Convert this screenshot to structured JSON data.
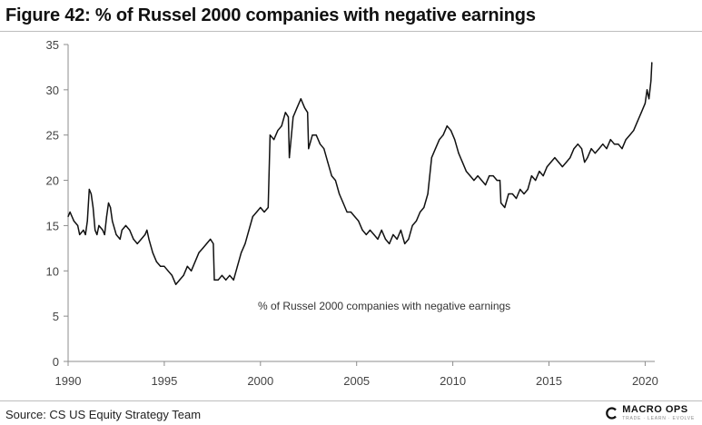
{
  "figure": {
    "title": "Figure 42: % of Russel 2000 companies with negative earnings",
    "source": "Source: CS US Equity Strategy Team"
  },
  "logo": {
    "name": "MACRO OPS",
    "tagline": "TRADE · LEARN · EVOLVE"
  },
  "colors": {
    "line": "#111111",
    "axis": "#8c8c8c",
    "text": "#222222"
  },
  "chart_data": {
    "type": "line",
    "title": "Figure 42: % of Russel 2000 companies with negative earnings",
    "xlabel": "",
    "ylabel": "",
    "xlim": [
      1990,
      2020.5
    ],
    "ylim": [
      0,
      35
    ],
    "grid": false,
    "x_ticks": [
      1990,
      1995,
      2000,
      2005,
      2010,
      2015,
      2020
    ],
    "y_ticks": [
      0,
      5,
      10,
      15,
      20,
      25,
      30,
      35
    ],
    "annotation": "% of Russel 2000 companies with negative earnings",
    "series": [
      {
        "name": "% of Russel 2000 companies with negative earnings",
        "points": [
          [
            1990.0,
            16.0
          ],
          [
            1990.1,
            16.5
          ],
          [
            1990.3,
            15.5
          ],
          [
            1990.5,
            15.0
          ],
          [
            1990.6,
            14.0
          ],
          [
            1990.8,
            14.5
          ],
          [
            1990.9,
            14.0
          ],
          [
            1991.0,
            15.5
          ],
          [
            1991.1,
            19.0
          ],
          [
            1991.2,
            18.5
          ],
          [
            1991.3,
            17.0
          ],
          [
            1991.4,
            14.5
          ],
          [
            1991.5,
            14.0
          ],
          [
            1991.6,
            15.0
          ],
          [
            1991.8,
            14.5
          ],
          [
            1991.9,
            14.0
          ],
          [
            1992.0,
            16.0
          ],
          [
            1992.1,
            17.5
          ],
          [
            1992.2,
            17.0
          ],
          [
            1992.3,
            15.5
          ],
          [
            1992.5,
            14.0
          ],
          [
            1992.7,
            13.5
          ],
          [
            1992.8,
            14.5
          ],
          [
            1993.0,
            15.0
          ],
          [
            1993.2,
            14.5
          ],
          [
            1993.4,
            13.5
          ],
          [
            1993.6,
            13.0
          ],
          [
            1993.8,
            13.5
          ],
          [
            1994.0,
            14.0
          ],
          [
            1994.1,
            14.5
          ],
          [
            1994.2,
            13.5
          ],
          [
            1994.4,
            12.0
          ],
          [
            1994.6,
            11.0
          ],
          [
            1994.8,
            10.5
          ],
          [
            1995.0,
            10.5
          ],
          [
            1995.2,
            10.0
          ],
          [
            1995.4,
            9.5
          ],
          [
            1995.6,
            8.5
          ],
          [
            1995.8,
            9.0
          ],
          [
            1996.0,
            9.5
          ],
          [
            1996.2,
            10.5
          ],
          [
            1996.4,
            10.0
          ],
          [
            1996.6,
            11.0
          ],
          [
            1996.8,
            12.0
          ],
          [
            1997.0,
            12.5
          ],
          [
            1997.2,
            13.0
          ],
          [
            1997.4,
            13.5
          ],
          [
            1997.55,
            13.0
          ],
          [
            1997.6,
            9.0
          ],
          [
            1997.8,
            9.0
          ],
          [
            1998.0,
            9.5
          ],
          [
            1998.2,
            9.0
          ],
          [
            1998.4,
            9.5
          ],
          [
            1998.6,
            9.0
          ],
          [
            1998.8,
            10.5
          ],
          [
            1999.0,
            12.0
          ],
          [
            1999.2,
            13.0
          ],
          [
            1999.4,
            14.5
          ],
          [
            1999.6,
            16.0
          ],
          [
            1999.8,
            16.5
          ],
          [
            2000.0,
            17.0
          ],
          [
            2000.2,
            16.5
          ],
          [
            2000.4,
            17.0
          ],
          [
            2000.5,
            25.0
          ],
          [
            2000.7,
            24.5
          ],
          [
            2000.9,
            25.5
          ],
          [
            2001.1,
            26.0
          ],
          [
            2001.3,
            27.5
          ],
          [
            2001.45,
            27.0
          ],
          [
            2001.5,
            22.5
          ],
          [
            2001.7,
            27.0
          ],
          [
            2001.9,
            28.0
          ],
          [
            2002.1,
            29.0
          ],
          [
            2002.3,
            28.0
          ],
          [
            2002.45,
            27.5
          ],
          [
            2002.5,
            23.5
          ],
          [
            2002.7,
            25.0
          ],
          [
            2002.9,
            25.0
          ],
          [
            2003.1,
            24.0
          ],
          [
            2003.3,
            23.5
          ],
          [
            2003.5,
            22.0
          ],
          [
            2003.7,
            20.5
          ],
          [
            2003.9,
            20.0
          ],
          [
            2004.1,
            18.5
          ],
          [
            2004.3,
            17.5
          ],
          [
            2004.5,
            16.5
          ],
          [
            2004.7,
            16.5
          ],
          [
            2004.9,
            16.0
          ],
          [
            2005.1,
            15.5
          ],
          [
            2005.3,
            14.5
          ],
          [
            2005.5,
            14.0
          ],
          [
            2005.7,
            14.5
          ],
          [
            2005.9,
            14.0
          ],
          [
            2006.1,
            13.5
          ],
          [
            2006.3,
            14.5
          ],
          [
            2006.5,
            13.5
          ],
          [
            2006.7,
            13.0
          ],
          [
            2006.9,
            14.0
          ],
          [
            2007.1,
            13.5
          ],
          [
            2007.3,
            14.5
          ],
          [
            2007.5,
            13.0
          ],
          [
            2007.7,
            13.5
          ],
          [
            2007.9,
            15.0
          ],
          [
            2008.1,
            15.5
          ],
          [
            2008.3,
            16.5
          ],
          [
            2008.5,
            17.0
          ],
          [
            2008.7,
            18.5
          ],
          [
            2008.9,
            22.5
          ],
          [
            2009.1,
            23.5
          ],
          [
            2009.3,
            24.5
          ],
          [
            2009.5,
            25.0
          ],
          [
            2009.7,
            26.0
          ],
          [
            2009.9,
            25.5
          ],
          [
            2010.1,
            24.5
          ],
          [
            2010.3,
            23.0
          ],
          [
            2010.5,
            22.0
          ],
          [
            2010.7,
            21.0
          ],
          [
            2010.9,
            20.5
          ],
          [
            2011.1,
            20.0
          ],
          [
            2011.3,
            20.5
          ],
          [
            2011.5,
            20.0
          ],
          [
            2011.7,
            19.5
          ],
          [
            2011.9,
            20.5
          ],
          [
            2012.1,
            20.5
          ],
          [
            2012.3,
            20.0
          ],
          [
            2012.45,
            20.0
          ],
          [
            2012.5,
            17.5
          ],
          [
            2012.7,
            17.0
          ],
          [
            2012.9,
            18.5
          ],
          [
            2013.1,
            18.5
          ],
          [
            2013.3,
            18.0
          ],
          [
            2013.5,
            19.0
          ],
          [
            2013.7,
            18.5
          ],
          [
            2013.9,
            19.0
          ],
          [
            2014.1,
            20.5
          ],
          [
            2014.3,
            20.0
          ],
          [
            2014.5,
            21.0
          ],
          [
            2014.7,
            20.5
          ],
          [
            2014.9,
            21.5
          ],
          [
            2015.1,
            22.0
          ],
          [
            2015.3,
            22.5
          ],
          [
            2015.5,
            22.0
          ],
          [
            2015.7,
            21.5
          ],
          [
            2015.9,
            22.0
          ],
          [
            2016.1,
            22.5
          ],
          [
            2016.3,
            23.5
          ],
          [
            2016.5,
            24.0
          ],
          [
            2016.7,
            23.5
          ],
          [
            2016.85,
            22.0
          ],
          [
            2017.0,
            22.5
          ],
          [
            2017.2,
            23.5
          ],
          [
            2017.4,
            23.0
          ],
          [
            2017.6,
            23.5
          ],
          [
            2017.8,
            24.0
          ],
          [
            2018.0,
            23.5
          ],
          [
            2018.2,
            24.5
          ],
          [
            2018.4,
            24.0
          ],
          [
            2018.6,
            24.0
          ],
          [
            2018.8,
            23.5
          ],
          [
            2019.0,
            24.5
          ],
          [
            2019.2,
            25.0
          ],
          [
            2019.4,
            25.5
          ],
          [
            2019.6,
            26.5
          ],
          [
            2019.8,
            27.5
          ],
          [
            2020.0,
            28.5
          ],
          [
            2020.1,
            30.0
          ],
          [
            2020.2,
            29.0
          ],
          [
            2020.3,
            31.0
          ],
          [
            2020.35,
            33.0
          ]
        ]
      }
    ]
  }
}
